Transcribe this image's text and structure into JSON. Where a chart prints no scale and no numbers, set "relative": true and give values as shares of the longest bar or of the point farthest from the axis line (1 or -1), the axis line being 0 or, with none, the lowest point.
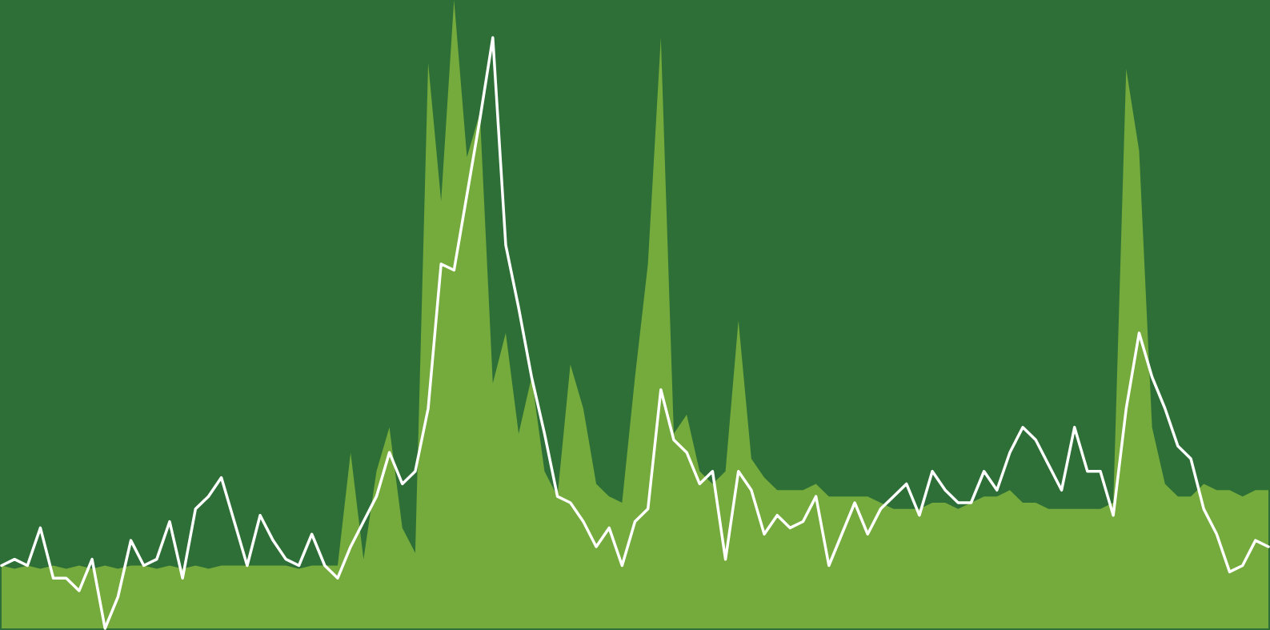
{
  "chart_data": {
    "type": "area",
    "relative": true,
    "categories": [
      null,
      null,
      null,
      null,
      null,
      null,
      null,
      null,
      null,
      null,
      null,
      null,
      null,
      null,
      null,
      null,
      null,
      null,
      null,
      null,
      null,
      null,
      null,
      null,
      null,
      null,
      null,
      null,
      null,
      null,
      null,
      null,
      null,
      null,
      null,
      null,
      null,
      null,
      null,
      null,
      null,
      null,
      null,
      null,
      null,
      null,
      null,
      null,
      null,
      null,
      null,
      null,
      null,
      null,
      null,
      null,
      null,
      null,
      null,
      null,
      null,
      null,
      null,
      null,
      null,
      null,
      null,
      null,
      null,
      null,
      null,
      null,
      null,
      null,
      null,
      null,
      null,
      null,
      null,
      null,
      null,
      null,
      null,
      null,
      null,
      null,
      null,
      null,
      null,
      null,
      null,
      null,
      null,
      null,
      null,
      null,
      null,
      null,
      null
    ],
    "series": [
      {
        "type": "area",
        "color": "#74ab3c",
        "values": [
          0.1,
          0.095,
          0.1,
          0.095,
          0.1,
          0.095,
          0.1,
          0.095,
          0.1,
          0.095,
          0.1,
          0.1,
          0.095,
          0.1,
          0.095,
          0.1,
          0.095,
          0.1,
          0.1,
          0.1,
          0.1,
          0.1,
          0.1,
          0.095,
          0.1,
          0.1,
          0.1,
          0.28,
          0.11,
          0.25,
          0.32,
          0.16,
          0.12,
          0.9,
          0.68,
          1.0,
          0.75,
          0.82,
          0.39,
          0.47,
          0.31,
          0.4,
          0.25,
          0.21,
          0.42,
          0.35,
          0.23,
          0.21,
          0.2,
          0.4,
          0.58,
          0.94,
          0.31,
          0.34,
          0.25,
          0.23,
          0.25,
          0.49,
          0.27,
          0.24,
          0.22,
          0.22,
          0.22,
          0.23,
          0.21,
          0.21,
          0.21,
          0.21,
          0.2,
          0.19,
          0.19,
          0.19,
          0.2,
          0.2,
          0.19,
          0.2,
          0.21,
          0.21,
          0.22,
          0.2,
          0.2,
          0.19,
          0.19,
          0.19,
          0.19,
          0.19,
          0.2,
          0.89,
          0.76,
          0.32,
          0.23,
          0.21,
          0.21,
          0.23,
          0.22,
          0.22,
          0.21,
          0.22,
          0.22
        ]
      },
      {
        "type": "line",
        "color": "#ffffff",
        "values": [
          0.1,
          0.11,
          0.1,
          0.16,
          0.08,
          0.08,
          0.06,
          0.11,
          0.0,
          0.05,
          0.14,
          0.1,
          0.11,
          0.17,
          0.08,
          0.19,
          0.21,
          0.24,
          0.17,
          0.1,
          0.18,
          0.14,
          0.11,
          0.1,
          0.15,
          0.1,
          0.08,
          0.13,
          0.17,
          0.21,
          0.28,
          0.23,
          0.25,
          0.35,
          0.58,
          0.57,
          0.69,
          0.81,
          0.94,
          0.61,
          0.51,
          0.4,
          0.31,
          0.21,
          0.2,
          0.17,
          0.13,
          0.16,
          0.1,
          0.17,
          0.19,
          0.38,
          0.3,
          0.28,
          0.23,
          0.25,
          0.11,
          0.25,
          0.22,
          0.15,
          0.18,
          0.16,
          0.17,
          0.21,
          0.1,
          0.15,
          0.2,
          0.15,
          0.19,
          0.21,
          0.23,
          0.18,
          0.25,
          0.22,
          0.2,
          0.2,
          0.25,
          0.22,
          0.28,
          0.32,
          0.3,
          0.26,
          0.22,
          0.32,
          0.25,
          0.25,
          0.18,
          0.35,
          0.47,
          0.4,
          0.35,
          0.29,
          0.27,
          0.19,
          0.15,
          0.09,
          0.1,
          0.14,
          0.13
        ]
      }
    ]
  }
}
